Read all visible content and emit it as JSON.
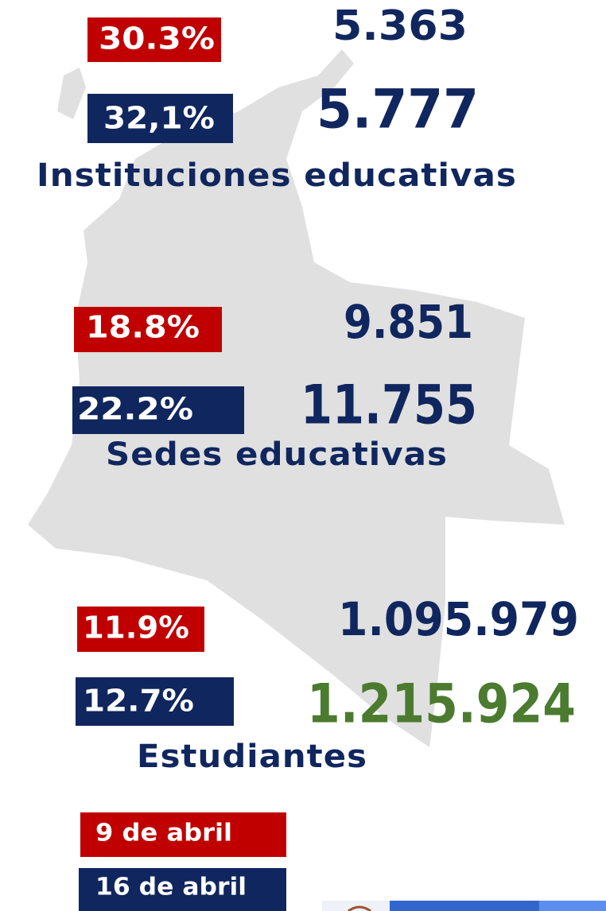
{
  "sections": [
    {
      "previous_pct": "30.3%",
      "current_pct": "32,1%",
      "previous_value": "5.363",
      "current_value": "5.777",
      "label": "Instituciones educativas"
    },
    {
      "previous_pct": "18.8%",
      "current_pct": "22.2%",
      "previous_value": "9.851",
      "current_value": "11.755",
      "label": "Sedes educativas"
    },
    {
      "previous_pct": "11.9%",
      "current_pct": "12.7%",
      "previous_value": "1.095.979",
      "current_value": "1.215.924",
      "label": "Estudiantes"
    }
  ],
  "legend": [
    "9 de abril",
    "16 de abril"
  ]
}
